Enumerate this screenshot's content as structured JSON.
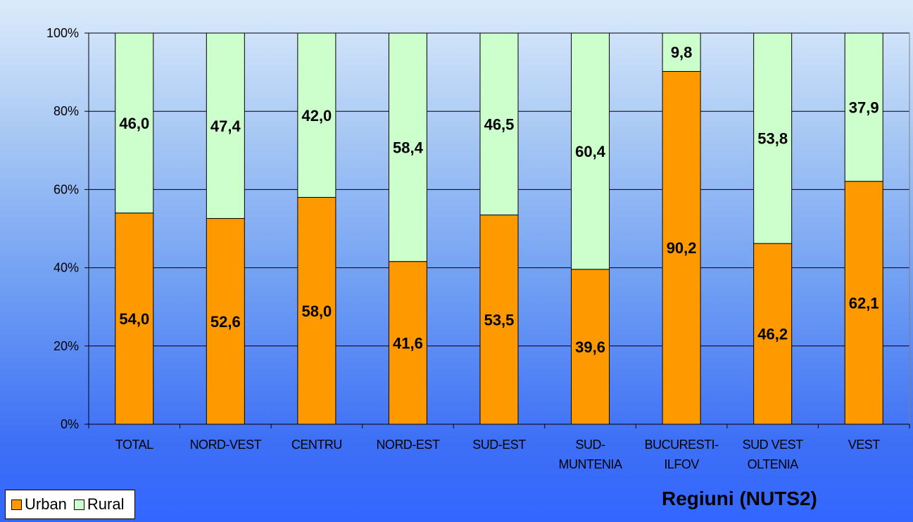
{
  "chart_data": {
    "type": "bar",
    "stacked": "percent",
    "categories": [
      [
        "TOTAL"
      ],
      [
        "NORD-VEST"
      ],
      [
        "CENTRU"
      ],
      [
        "NORD-EST"
      ],
      [
        "SUD-EST"
      ],
      [
        "SUD-",
        "MUNTENIA"
      ],
      [
        "BUCURESTI-",
        "ILFOV"
      ],
      [
        "SUD VEST",
        "OLTENIA"
      ],
      [
        "VEST"
      ]
    ],
    "series": [
      {
        "name": "Urban",
        "color": "#ff9900",
        "values": [
          54.0,
          52.6,
          58.0,
          41.6,
          53.5,
          39.6,
          90.2,
          46.2,
          62.1
        ],
        "labels": [
          "54,0",
          "52,6",
          "58,0",
          "41,6",
          "53,5",
          "39,6",
          "90,2",
          "46,2",
          "62,1"
        ]
      },
      {
        "name": "Rural",
        "color": "#ccffcc",
        "values": [
          46.0,
          47.4,
          42.0,
          58.4,
          46.5,
          60.4,
          9.8,
          53.8,
          37.9
        ],
        "labels": [
          "46,0",
          "47,4",
          "42,0",
          "58,4",
          "46,5",
          "60,4",
          "9,8",
          "53,8",
          "37,9"
        ]
      }
    ],
    "yticks": [
      "0%",
      "20%",
      "40%",
      "60%",
      "80%",
      "100%"
    ],
    "ylim": [
      0,
      100
    ],
    "xlabel": "Regiuni (NUTS2)",
    "grid": true,
    "legend": "bottom-left"
  },
  "legend": {
    "urban": "Urban",
    "rural": "Rural"
  }
}
